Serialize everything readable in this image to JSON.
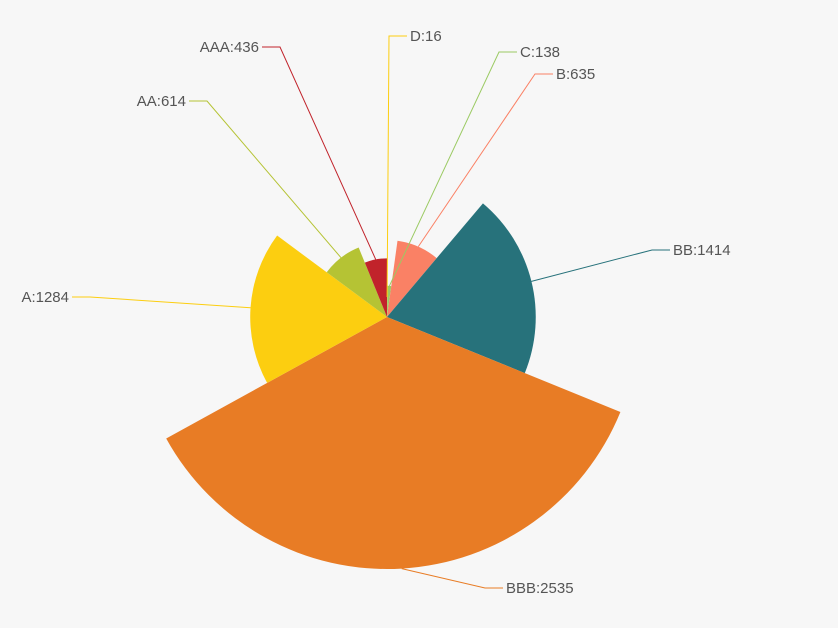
{
  "chart_data": {
    "type": "pie",
    "variant": "rose-radius",
    "slices": [
      {
        "name": "D",
        "value": 16,
        "color": "#fcce10"
      },
      {
        "name": "C",
        "value": 138,
        "color": "#9bca63"
      },
      {
        "name": "B",
        "value": 635,
        "color": "#fa8165"
      },
      {
        "name": "BB",
        "value": 1414,
        "color": "#27727b"
      },
      {
        "name": "BBB",
        "value": 2535,
        "color": "#e87c25"
      },
      {
        "name": "A",
        "value": 1284,
        "color": "#fcce10"
      },
      {
        "name": "AA",
        "value": 614,
        "color": "#b5c334"
      },
      {
        "name": "AAA",
        "value": 436,
        "color": "#c1232b"
      }
    ],
    "label_format": "{name}:{value}",
    "legend": "none"
  }
}
